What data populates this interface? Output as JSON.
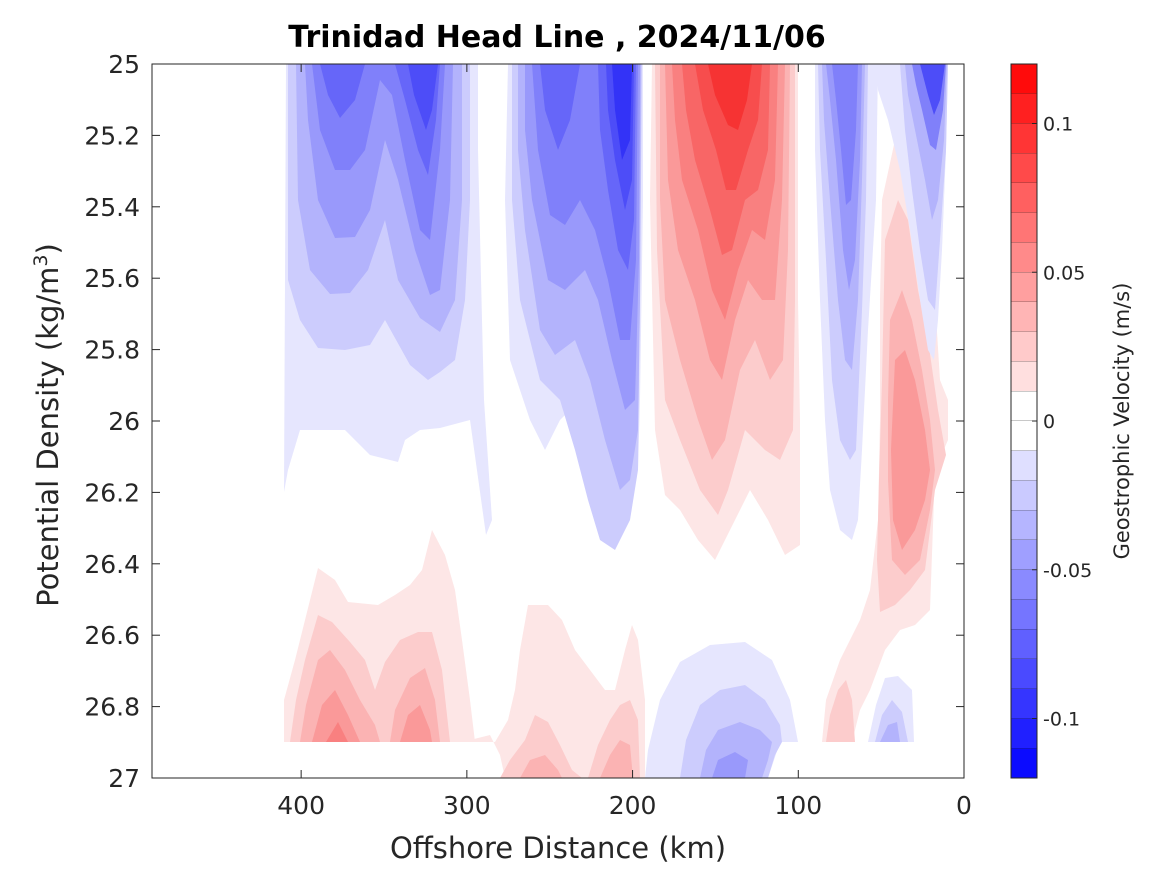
{
  "chart_data": {
    "type": "contour",
    "title": "Trinidad Head Line , 2024/11/06",
    "xlabel": "Offshore Distance (km)",
    "ylabel_main": "Potential Density (kg/m",
    "ylabel_sup": "3",
    "ylabel_end": ")",
    "xlim": [
      490,
      0
    ],
    "ylim": [
      25,
      27
    ],
    "x_ticks": [
      400,
      300,
      200,
      100,
      0
    ],
    "x_tick_labels": [
      "400",
      "300",
      "200",
      "100",
      "0"
    ],
    "y_ticks": [
      25,
      25.2,
      25.4,
      25.6,
      25.8,
      26,
      26.2,
      26.4,
      26.6,
      26.8,
      27
    ],
    "y_tick_labels": [
      "25",
      "25.2",
      "25.4",
      "25.6",
      "25.8",
      "26",
      "26.2",
      "26.4",
      "26.6",
      "26.8",
      "27"
    ],
    "colorbar": {
      "label": "Geostrophic Velocity (m/s)",
      "clim": [
        -0.12,
        0.12
      ],
      "levels": 24,
      "ticks": [
        0.1,
        0.05,
        0,
        -0.05,
        -0.1
      ],
      "tick_labels": [
        "0.1",
        "0.05",
        "0",
        "-0.05",
        "-0.1"
      ],
      "negative_color": "#0000ff",
      "positive_color": "#ff0000",
      "zero_color": "#ffffff"
    },
    "features": [
      {
        "name": "offshore-blue-core-west",
        "x": 375,
        "y": 25.05,
        "peak_velocity": -0.06,
        "extent_x": [
          410,
          290
        ],
        "extent_y": [
          25,
          26.2
        ]
      },
      {
        "name": "offshore-blue-core",
        "x": 322,
        "y": 25.1,
        "peak_velocity": -0.09,
        "extent_x": [
          410,
          290
        ],
        "extent_y": [
          25,
          26.2
        ]
      },
      {
        "name": "mid-blue-core",
        "x": 212,
        "y": 25.15,
        "peak_velocity": -0.11,
        "extent_x": [
          275,
          195
        ],
        "extent_y": [
          25,
          26.4
        ]
      },
      {
        "name": "red-core",
        "x": 145,
        "y": 25.2,
        "peak_velocity": 0.09,
        "extent_x": [
          190,
          100
        ],
        "extent_y": [
          25,
          26.4
        ]
      },
      {
        "name": "nearshore-blue-narrow",
        "x": 72,
        "y": 25.3,
        "peak_velocity": -0.06,
        "extent_x": [
          90,
          55
        ],
        "extent_y": [
          25,
          26.3
        ]
      },
      {
        "name": "coastal-blue-core",
        "x": 17,
        "y": 25.1,
        "peak_velocity": -0.09,
        "extent_x": [
          35,
          5
        ],
        "extent_y": [
          25,
          25.8
        ]
      },
      {
        "name": "coastal-red-deep",
        "x": 38,
        "y": 26.1,
        "peak_velocity": 0.05,
        "extent_x": [
          55,
          20
        ],
        "extent_y": [
          25.2,
          26.6
        ]
      },
      {
        "name": "deep-red-west",
        "x": 378,
        "y": 26.88,
        "peak_velocity": 0.05,
        "extent_x": [
          410,
          290
        ],
        "extent_y": [
          26.4,
          26.9
        ]
      },
      {
        "name": "deep-red-mid",
        "x": 215,
        "y": 26.95,
        "peak_velocity": 0.04,
        "extent_x": [
          280,
          195
        ],
        "extent_y": [
          26.5,
          27
        ]
      },
      {
        "name": "deep-blue-center",
        "x": 140,
        "y": 26.95,
        "peak_velocity": -0.04,
        "extent_x": [
          195,
          100
        ],
        "extent_y": [
          26.6,
          27
        ]
      },
      {
        "name": "deep-red-near",
        "x": 75,
        "y": 26.85,
        "peak_velocity": 0.03,
        "extent_x": [
          90,
          40
        ],
        "extent_y": [
          26.5,
          26.9
        ]
      },
      {
        "name": "deep-blue-near",
        "x": 35,
        "y": 26.85,
        "peak_velocity": -0.03,
        "extent_x": [
          50,
          25
        ],
        "extent_y": [
          26.7,
          26.9
        ]
      }
    ]
  }
}
